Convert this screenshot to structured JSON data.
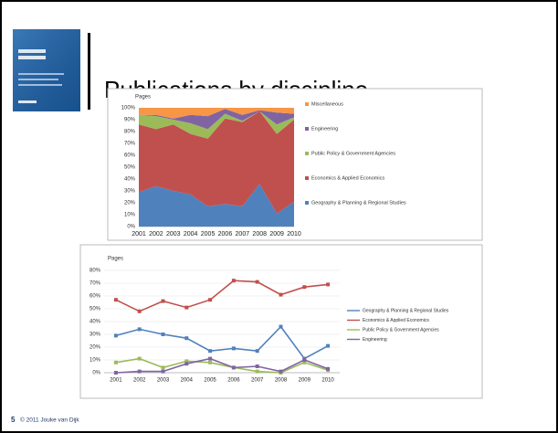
{
  "slide": {
    "title": "Publications by discipline",
    "number": "5",
    "footer": "© 2011 Jouke van Dijk"
  },
  "chart_data": [
    {
      "type": "area",
      "title": "Pages",
      "categories": [
        "2001",
        "2002",
        "2003",
        "2004",
        "2005",
        "2006",
        "2007",
        "2008",
        "2009",
        "2010"
      ],
      "series": [
        {
          "name": "Geography & Planning & Regional Studies",
          "color": "#4f81bd",
          "values": [
            29,
            34,
            30,
            27,
            17,
            19,
            17,
            36,
            11,
            21
          ]
        },
        {
          "name": "Economics & Applied Economics",
          "color": "#c0504d",
          "values": [
            57,
            48,
            56,
            51,
            57,
            72,
            71,
            61,
            67,
            69
          ]
        },
        {
          "name": "Public Policy & Government Agencies",
          "color": "#9bbb59",
          "values": [
            8,
            11,
            4,
            9,
            8,
            4,
            1,
            0,
            8,
            2
          ]
        },
        {
          "name": "Engineering",
          "color": "#8064a2",
          "values": [
            0,
            1,
            1,
            7,
            11,
            4,
            5,
            1,
            10,
            3
          ]
        },
        {
          "name": "Miscellaneous",
          "color": "#f79646",
          "values": [
            6,
            6,
            9,
            6,
            7,
            1,
            6,
            2,
            4,
            5
          ]
        }
      ],
      "ylim": [
        0,
        100
      ],
      "yticks": [
        {
          "value": 0,
          "label": "0%"
        },
        {
          "value": 10,
          "label": "10%"
        },
        {
          "value": 20,
          "label": "20%"
        },
        {
          "value": 30,
          "label": "30%"
        },
        {
          "value": 40,
          "label": "40%"
        },
        {
          "value": 50,
          "label": "50%"
        },
        {
          "value": 60,
          "label": "60%"
        },
        {
          "value": 70,
          "label": "70%"
        },
        {
          "value": 80,
          "label": "80%"
        },
        {
          "value": 90,
          "label": "90%"
        },
        {
          "value": 100,
          "label": "100%"
        }
      ],
      "grid": false,
      "legend": "right"
    },
    {
      "type": "line",
      "title": "Pages",
      "categories": [
        "2001",
        "2002",
        "2003",
        "2004",
        "2005",
        "2006",
        "2007",
        "2008",
        "2009",
        "2010"
      ],
      "series": [
        {
          "name": "Geography & Planning & Regional Studies",
          "color": "#4f81bd",
          "values": [
            29,
            34,
            30,
            27,
            17,
            19,
            17,
            36,
            11,
            21
          ]
        },
        {
          "name": "Economics & Applied Economics",
          "color": "#c0504d",
          "values": [
            57,
            48,
            56,
            51,
            57,
            72,
            71,
            61,
            67,
            69
          ]
        },
        {
          "name": "Public Policy & Government Agencies",
          "color": "#9bbb59",
          "values": [
            8,
            11,
            4,
            9,
            8,
            4,
            1,
            0,
            8,
            2
          ]
        },
        {
          "name": "Engineering",
          "color": "#8064a2",
          "values": [
            0,
            1,
            1,
            7,
            11,
            4,
            5,
            1,
            10,
            3
          ]
        }
      ],
      "ylim": [
        0,
        80
      ],
      "yticks": [
        {
          "value": 0,
          "label": "0%"
        },
        {
          "value": 10,
          "label": "10%"
        },
        {
          "value": 20,
          "label": "20%"
        },
        {
          "value": 30,
          "label": "30%"
        },
        {
          "value": 40,
          "label": "40%"
        },
        {
          "value": 50,
          "label": "50%"
        },
        {
          "value": 60,
          "label": "60%"
        },
        {
          "value": 70,
          "label": "70%"
        },
        {
          "value": 80,
          "label": "80%"
        }
      ],
      "grid": true,
      "legend": "right"
    }
  ]
}
